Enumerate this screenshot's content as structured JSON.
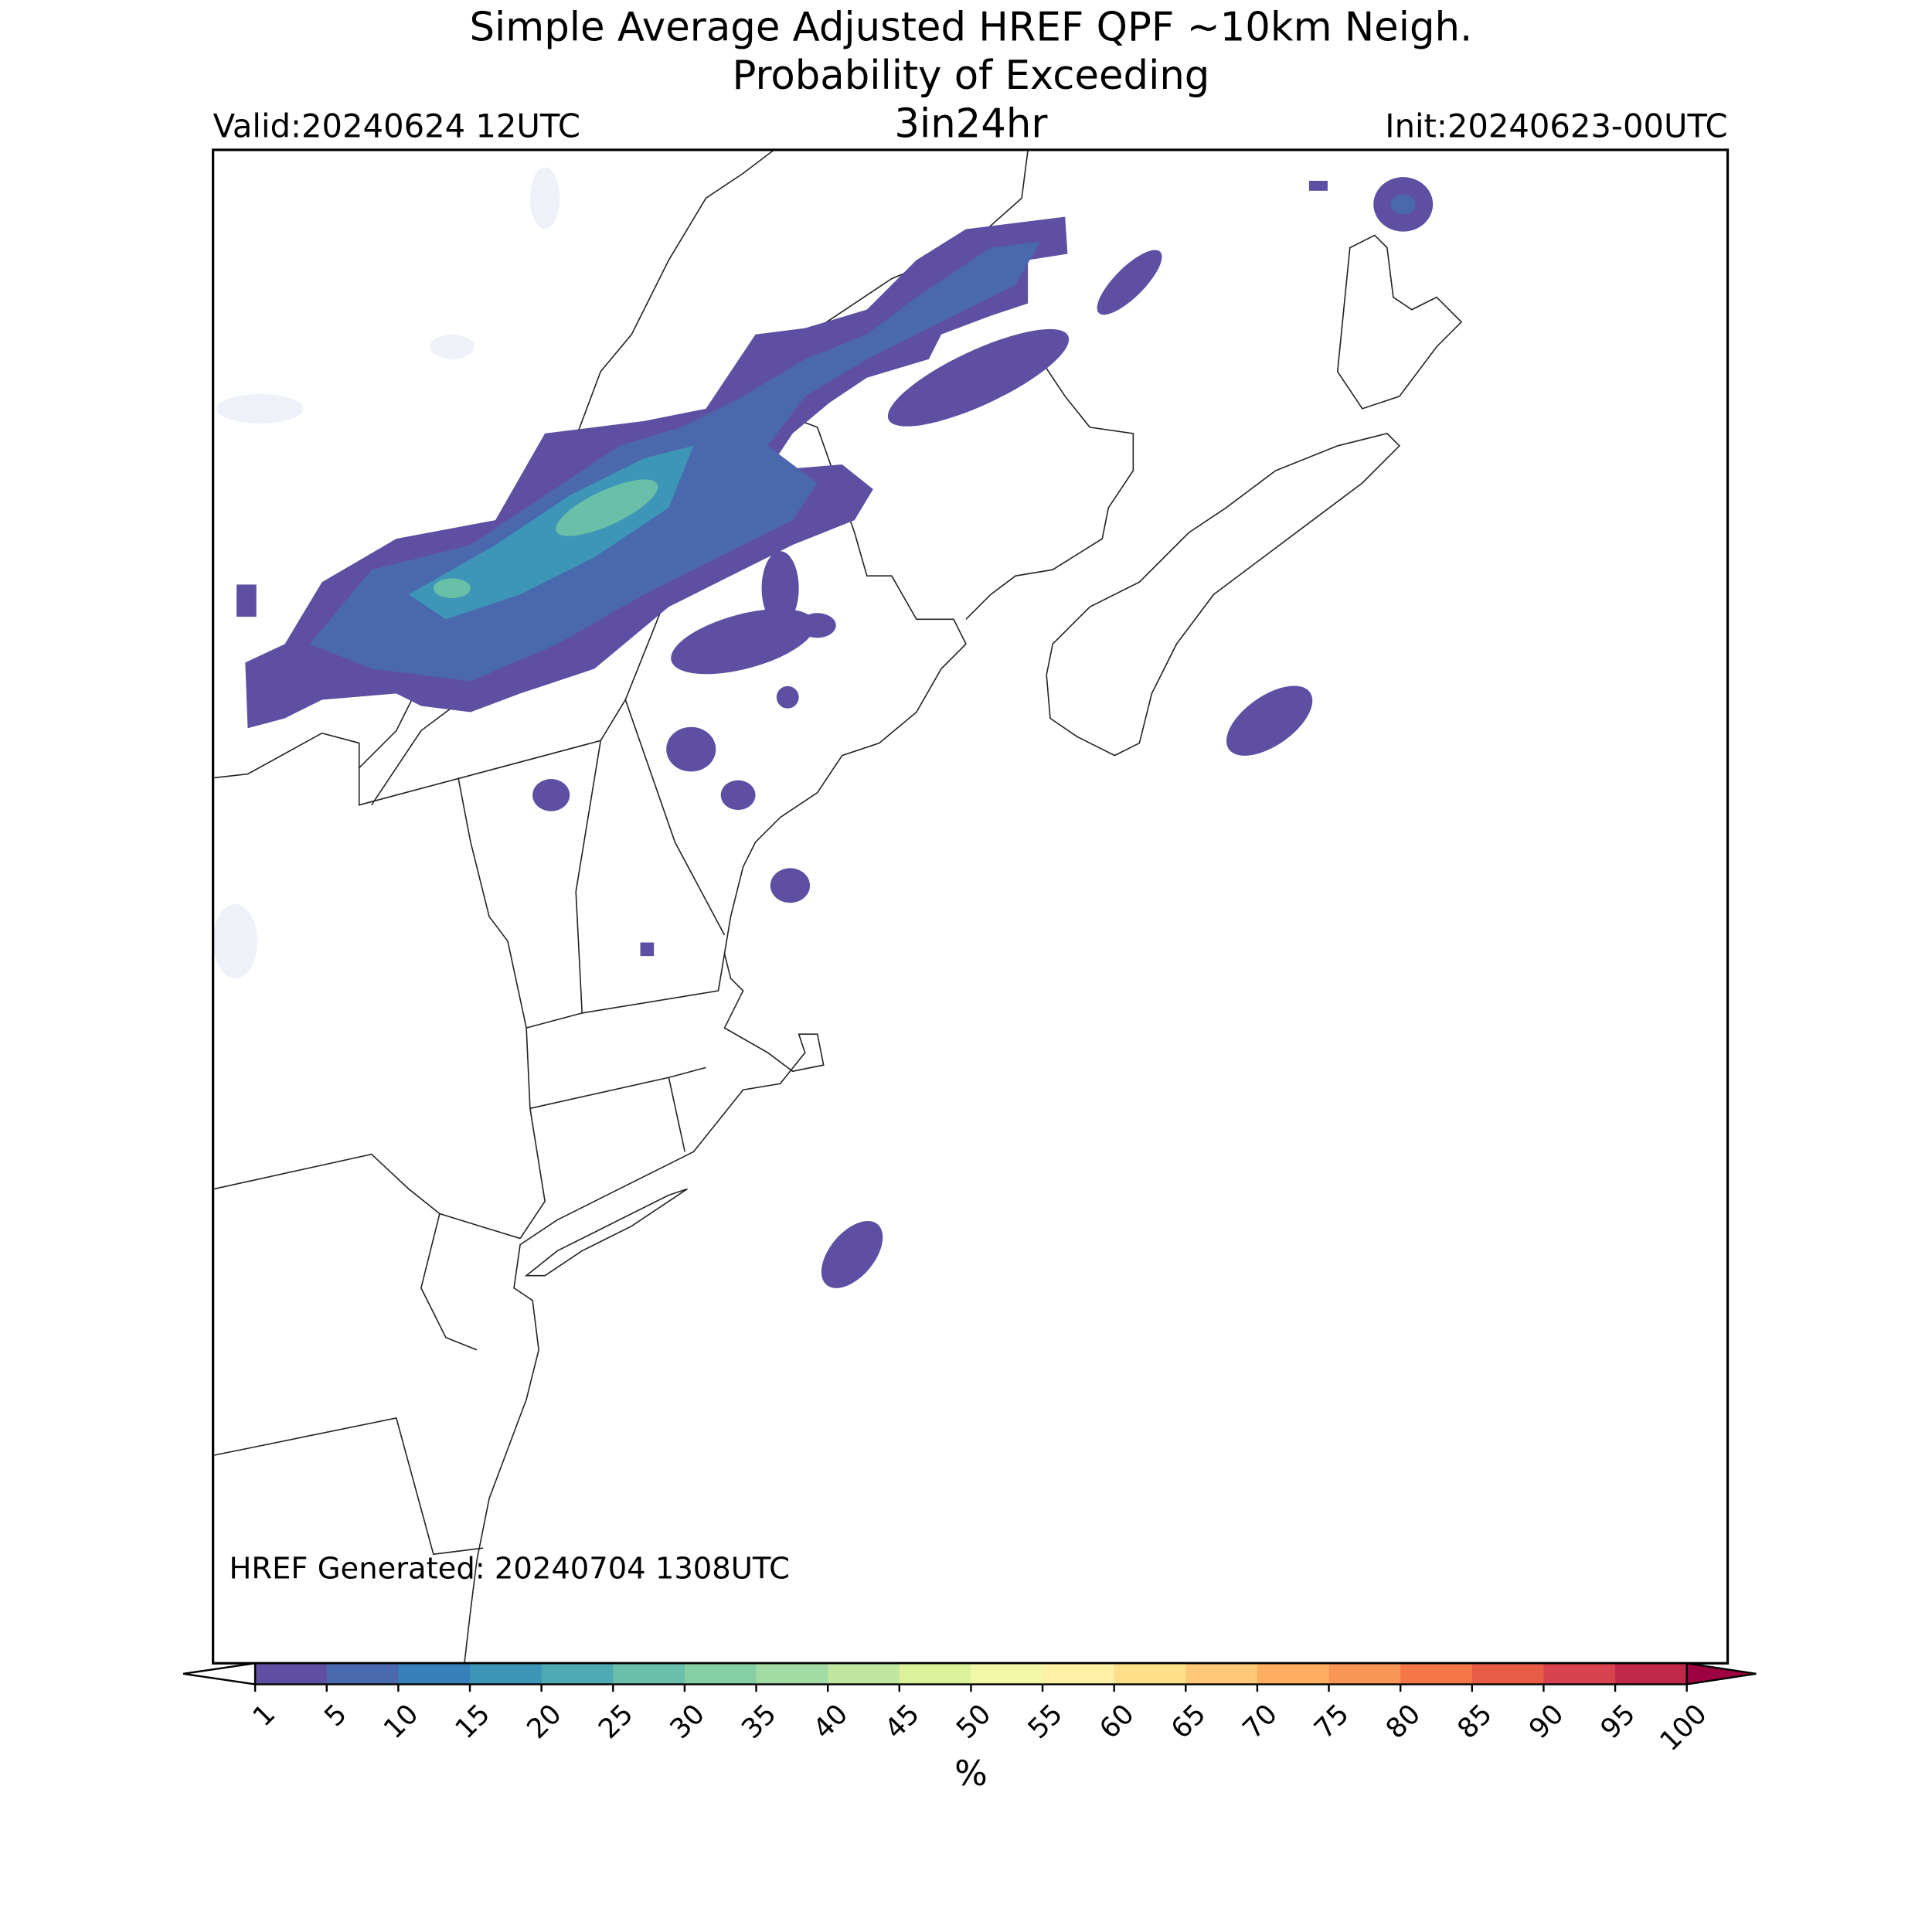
{
  "header": {
    "title_line1": "Simple Average Adjusted HREF QPF ~10km Neigh.",
    "title_line2": "Probability of Exceeding",
    "threshold": "3in24hr",
    "valid": "Valid:20240624 12UTC",
    "init": "Init:20240623-00UTC"
  },
  "map": {
    "footer": "HREF Generated: 20240704 1308UTC"
  },
  "colorbar": {
    "ticks": [
      1,
      5,
      10,
      15,
      20,
      25,
      30,
      35,
      40,
      45,
      50,
      55,
      60,
      65,
      70,
      75,
      80,
      85,
      90,
      95,
      100
    ],
    "colors": [
      "#5e4fa2",
      "#4a68ae",
      "#3880b9",
      "#3d95b8",
      "#4daab2",
      "#69bfa7",
      "#86cfa5",
      "#a3dba4",
      "#c0e6a0",
      "#dcf19a",
      "#f0f8a7",
      "#fff0a6",
      "#fee08b",
      "#fdc877",
      "#fdae61",
      "#f99555",
      "#f57748",
      "#e85c47",
      "#d7434f",
      "#c0284a"
    ],
    "over_color": "#9e0142",
    "label": "%"
  }
}
